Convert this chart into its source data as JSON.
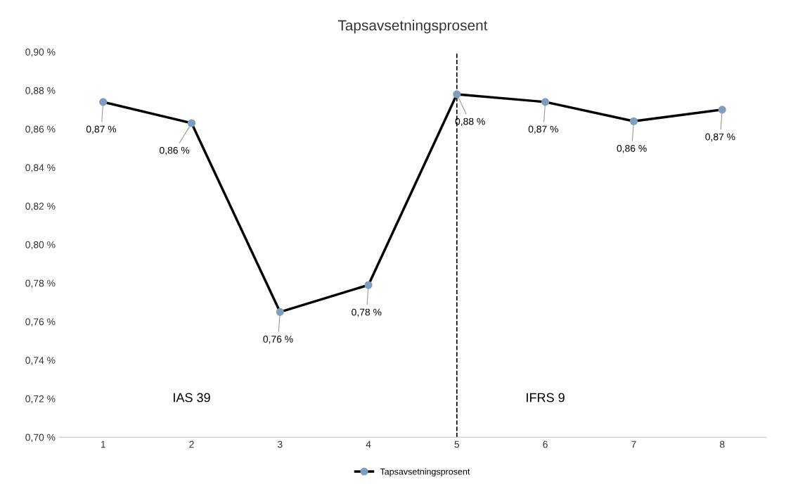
{
  "chart_data": {
    "type": "line",
    "title": "Tapsavsetningsprosent",
    "categories": [
      "1",
      "2",
      "3",
      "4",
      "5",
      "6",
      "7",
      "8"
    ],
    "series": [
      {
        "name": "Tapsavsetningsprosent",
        "color": "#000000",
        "colors": [
          "#7f9dbd",
          "#7f9dbd",
          "#7f9dbd",
          "#7f9dbd",
          "#7f9dbd",
          "#7f9dbd",
          "#7f9dbd",
          "#7f9dbd"
        ],
        "values": [
          0.874,
          0.863,
          0.765,
          0.779,
          0.878,
          0.874,
          0.864,
          0.87
        ],
        "value_labels": [
          "0,87 %",
          "0,86 %",
          "0,76 %",
          "0,78 %",
          "0,88 %",
          "0,87 %",
          "0,86 %",
          "0,87 %"
        ]
      }
    ],
    "ylim": [
      0.7,
      0.9
    ],
    "yticks": [
      {
        "value": 0.7,
        "label": "0,70 %"
      },
      {
        "value": 0.72,
        "label": "0,72 %"
      },
      {
        "value": 0.74,
        "label": "0,74 %"
      },
      {
        "value": 0.76,
        "label": "0,76 %"
      },
      {
        "value": 0.78,
        "label": "0,78 %"
      },
      {
        "value": 0.8,
        "label": "0,80 %"
      },
      {
        "value": 0.82,
        "label": "0,82 %"
      },
      {
        "value": 0.84,
        "label": "0,84 %"
      },
      {
        "value": 0.86,
        "label": "0,86 %"
      },
      {
        "value": 0.88,
        "label": "0,88 %"
      },
      {
        "value": 0.9,
        "label": "0,90 %"
      }
    ],
    "ref_lines": [
      {
        "axis": "x",
        "value": "5",
        "color": "#000000",
        "line_style": "dashed"
      }
    ],
    "annotations": [
      "IAS 39",
      "IFRS 9"
    ],
    "marker": "circle",
    "line_style": "solid",
    "grid": false,
    "legend": "bottom"
  }
}
